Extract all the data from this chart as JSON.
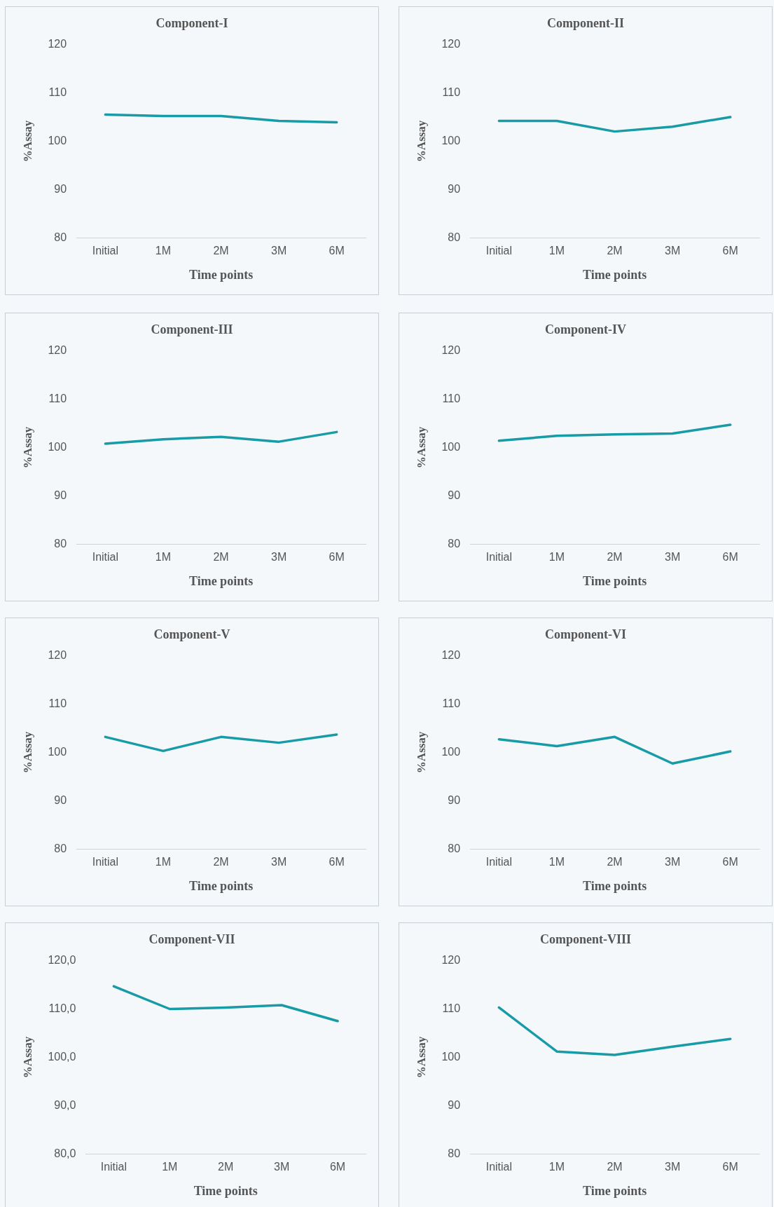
{
  "chart_data": [
    {
      "type": "line",
      "title": "Component-I",
      "xlabel": "Time points",
      "ylabel": "%Assay",
      "categories": [
        "Initial",
        "1M",
        "2M",
        "3M",
        "6M"
      ],
      "series": [
        {
          "color": "#179ba7",
          "values": [
            105.5,
            105.2,
            105.2,
            104.2,
            103.9
          ]
        }
      ],
      "ylim": [
        80,
        120
      ],
      "yticks": [
        80,
        90,
        100,
        110,
        120
      ],
      "grid": false,
      "marker": "none",
      "line_style": "solid"
    },
    {
      "type": "line",
      "title": "Component-II",
      "xlabel": "Time points",
      "ylabel": "%Assay",
      "categories": [
        "Initial",
        "1M",
        "2M",
        "3M",
        "6M"
      ],
      "series": [
        {
          "color": "#179ba7",
          "values": [
            104.2,
            104.2,
            102.0,
            103.0,
            105.0
          ]
        }
      ],
      "ylim": [
        80,
        120
      ],
      "yticks": [
        80,
        90,
        100,
        110,
        120
      ],
      "grid": false,
      "marker": "none",
      "line_style": "solid"
    },
    {
      "type": "line",
      "title": "Component-III",
      "xlabel": "Time points",
      "ylabel": "%Assay",
      "categories": [
        "Initial",
        "1M",
        "2M",
        "3M",
        "6M"
      ],
      "series": [
        {
          "color": "#179ba7",
          "values": [
            100.8,
            101.7,
            102.2,
            101.2,
            103.2
          ]
        }
      ],
      "ylim": [
        80,
        120
      ],
      "yticks": [
        80,
        90,
        100,
        110,
        120
      ],
      "grid": false,
      "marker": "none",
      "line_style": "solid"
    },
    {
      "type": "line",
      "title": "Component-IV",
      "xlabel": "Time points",
      "ylabel": "%Assay",
      "categories": [
        "Initial",
        "1M",
        "2M",
        "3M",
        "6M"
      ],
      "series": [
        {
          "color": "#179ba7",
          "values": [
            101.4,
            102.4,
            102.7,
            102.9,
            104.7
          ]
        }
      ],
      "ylim": [
        80,
        120
      ],
      "yticks": [
        80,
        90,
        100,
        110,
        120
      ],
      "grid": false,
      "marker": "none",
      "line_style": "solid"
    },
    {
      "type": "line",
      "title": "Component-V",
      "xlabel": "Time points",
      "ylabel": "%Assay",
      "categories": [
        "Initial",
        "1M",
        "2M",
        "3M",
        "6M"
      ],
      "series": [
        {
          "color": "#179ba7",
          "values": [
            103.2,
            100.3,
            103.2,
            102.0,
            103.7
          ]
        }
      ],
      "ylim": [
        80,
        120
      ],
      "yticks": [
        80,
        90,
        100,
        110,
        120
      ],
      "grid": false,
      "marker": "none",
      "line_style": "solid"
    },
    {
      "type": "line",
      "title": "Component-VI",
      "xlabel": "Time points",
      "ylabel": "%Assay",
      "categories": [
        "Initial",
        "1M",
        "2M",
        "3M",
        "6M"
      ],
      "series": [
        {
          "color": "#179ba7",
          "values": [
            102.7,
            101.3,
            103.2,
            97.7,
            100.2
          ]
        }
      ],
      "ylim": [
        80,
        120
      ],
      "yticks": [
        80,
        90,
        100,
        110,
        120
      ],
      "grid": false,
      "marker": "none",
      "line_style": "solid"
    },
    {
      "type": "line",
      "title": "Component-VII",
      "xlabel": "Time points",
      "ylabel": "%Assay",
      "categories": [
        "Initial",
        "1M",
        "2M",
        "3M",
        "6M"
      ],
      "series": [
        {
          "color": "#179ba7",
          "values": [
            114.7,
            110.0,
            110.3,
            110.8,
            107.5
          ]
        }
      ],
      "ylim": [
        80,
        120
      ],
      "yticks": [
        {
          "value": 80,
          "label": "80,0"
        },
        {
          "value": 90,
          "label": "90,0"
        },
        {
          "value": 100,
          "label": "100,0"
        },
        {
          "value": 110,
          "label": "110,0"
        },
        {
          "value": 120,
          "label": "120,0"
        }
      ],
      "grid": false,
      "marker": "none",
      "line_style": "solid"
    },
    {
      "type": "line",
      "title": "Component-VIII",
      "xlabel": "Time points",
      "ylabel": "%Assay",
      "categories": [
        "Initial",
        "1M",
        "2M",
        "3M",
        "6M"
      ],
      "series": [
        {
          "color": "#179ba7",
          "values": [
            110.3,
            101.2,
            100.5,
            102.2,
            103.8
          ]
        }
      ],
      "ylim": [
        80,
        120
      ],
      "yticks": [
        80,
        90,
        100,
        110,
        120
      ],
      "grid": false,
      "marker": "none",
      "line_style": "solid"
    }
  ]
}
